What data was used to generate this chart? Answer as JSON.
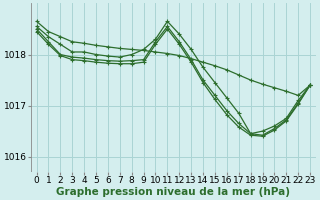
{
  "background_color": "#d4eeee",
  "grid_color": "#aad4d4",
  "line_color": "#2d6e2d",
  "xlabel": "Graphe pression niveau de la mer (hPa)",
  "xlim": [
    -0.5,
    23.5
  ],
  "ylim": [
    1015.7,
    1019.0
  ],
  "yticks": [
    1016,
    1017,
    1018
  ],
  "xticks": [
    0,
    1,
    2,
    3,
    4,
    5,
    6,
    7,
    8,
    9,
    10,
    11,
    12,
    13,
    14,
    15,
    16,
    17,
    18,
    19,
    20,
    21,
    22,
    23
  ],
  "series": [
    {
      "x": [
        0,
        1,
        2,
        3,
        4,
        5,
        6,
        7,
        8,
        9,
        10,
        11,
        12,
        13,
        14,
        15,
        16,
        17,
        18,
        19,
        20,
        21,
        22,
        23
      ],
      "y": [
        1018.65,
        1018.45,
        1018.35,
        1018.25,
        1018.22,
        1018.18,
        1018.15,
        1018.12,
        1018.1,
        1018.08,
        1018.05,
        1018.02,
        1017.98,
        1017.92,
        1017.85,
        1017.78,
        1017.7,
        1017.6,
        1017.5,
        1017.42,
        1017.35,
        1017.28,
        1017.2,
        1017.4
      ]
    },
    {
      "x": [
        0,
        1,
        2,
        3,
        4,
        5,
        6,
        7,
        8,
        9,
        10,
        11,
        12,
        13,
        14,
        15,
        16,
        17,
        18,
        19,
        20,
        21,
        22,
        23
      ],
      "y": [
        1018.55,
        1018.35,
        1018.2,
        1018.05,
        1018.05,
        1018.0,
        1017.97,
        1017.95,
        1018.0,
        1018.1,
        1018.3,
        1018.65,
        1018.4,
        1018.1,
        1017.75,
        1017.45,
        1017.15,
        1016.85,
        1016.45,
        1016.5,
        1016.6,
        1016.75,
        1017.1,
        1017.4
      ]
    },
    {
      "x": [
        0,
        1,
        2,
        3,
        4,
        5,
        6,
        7,
        8,
        9,
        10,
        11,
        12,
        13,
        14,
        15,
        16,
        17,
        18,
        19,
        20,
        21,
        22,
        23
      ],
      "y": [
        1018.5,
        1018.25,
        1018.0,
        1017.95,
        1017.93,
        1017.9,
        1017.88,
        1017.87,
        1017.88,
        1017.9,
        1018.25,
        1018.55,
        1018.25,
        1017.9,
        1017.5,
        1017.2,
        1016.9,
        1016.65,
        1016.45,
        1016.42,
        1016.55,
        1016.72,
        1017.05,
        1017.4
      ]
    },
    {
      "x": [
        0,
        1,
        2,
        3,
        4,
        5,
        6,
        7,
        8,
        9,
        10,
        11,
        12,
        13,
        14,
        15,
        16,
        17,
        18,
        19,
        20,
        21,
        22,
        23
      ],
      "y": [
        1018.45,
        1018.2,
        1017.98,
        1017.9,
        1017.88,
        1017.85,
        1017.83,
        1017.82,
        1017.82,
        1017.85,
        1018.2,
        1018.5,
        1018.2,
        1017.85,
        1017.45,
        1017.12,
        1016.82,
        1016.58,
        1016.42,
        1016.4,
        1016.52,
        1016.7,
        1017.03,
        1017.4
      ]
    }
  ],
  "marker": "+",
  "markersize": 3.5,
  "linewidth": 0.9,
  "xlabel_fontsize": 7.5,
  "tick_fontsize": 6.5
}
